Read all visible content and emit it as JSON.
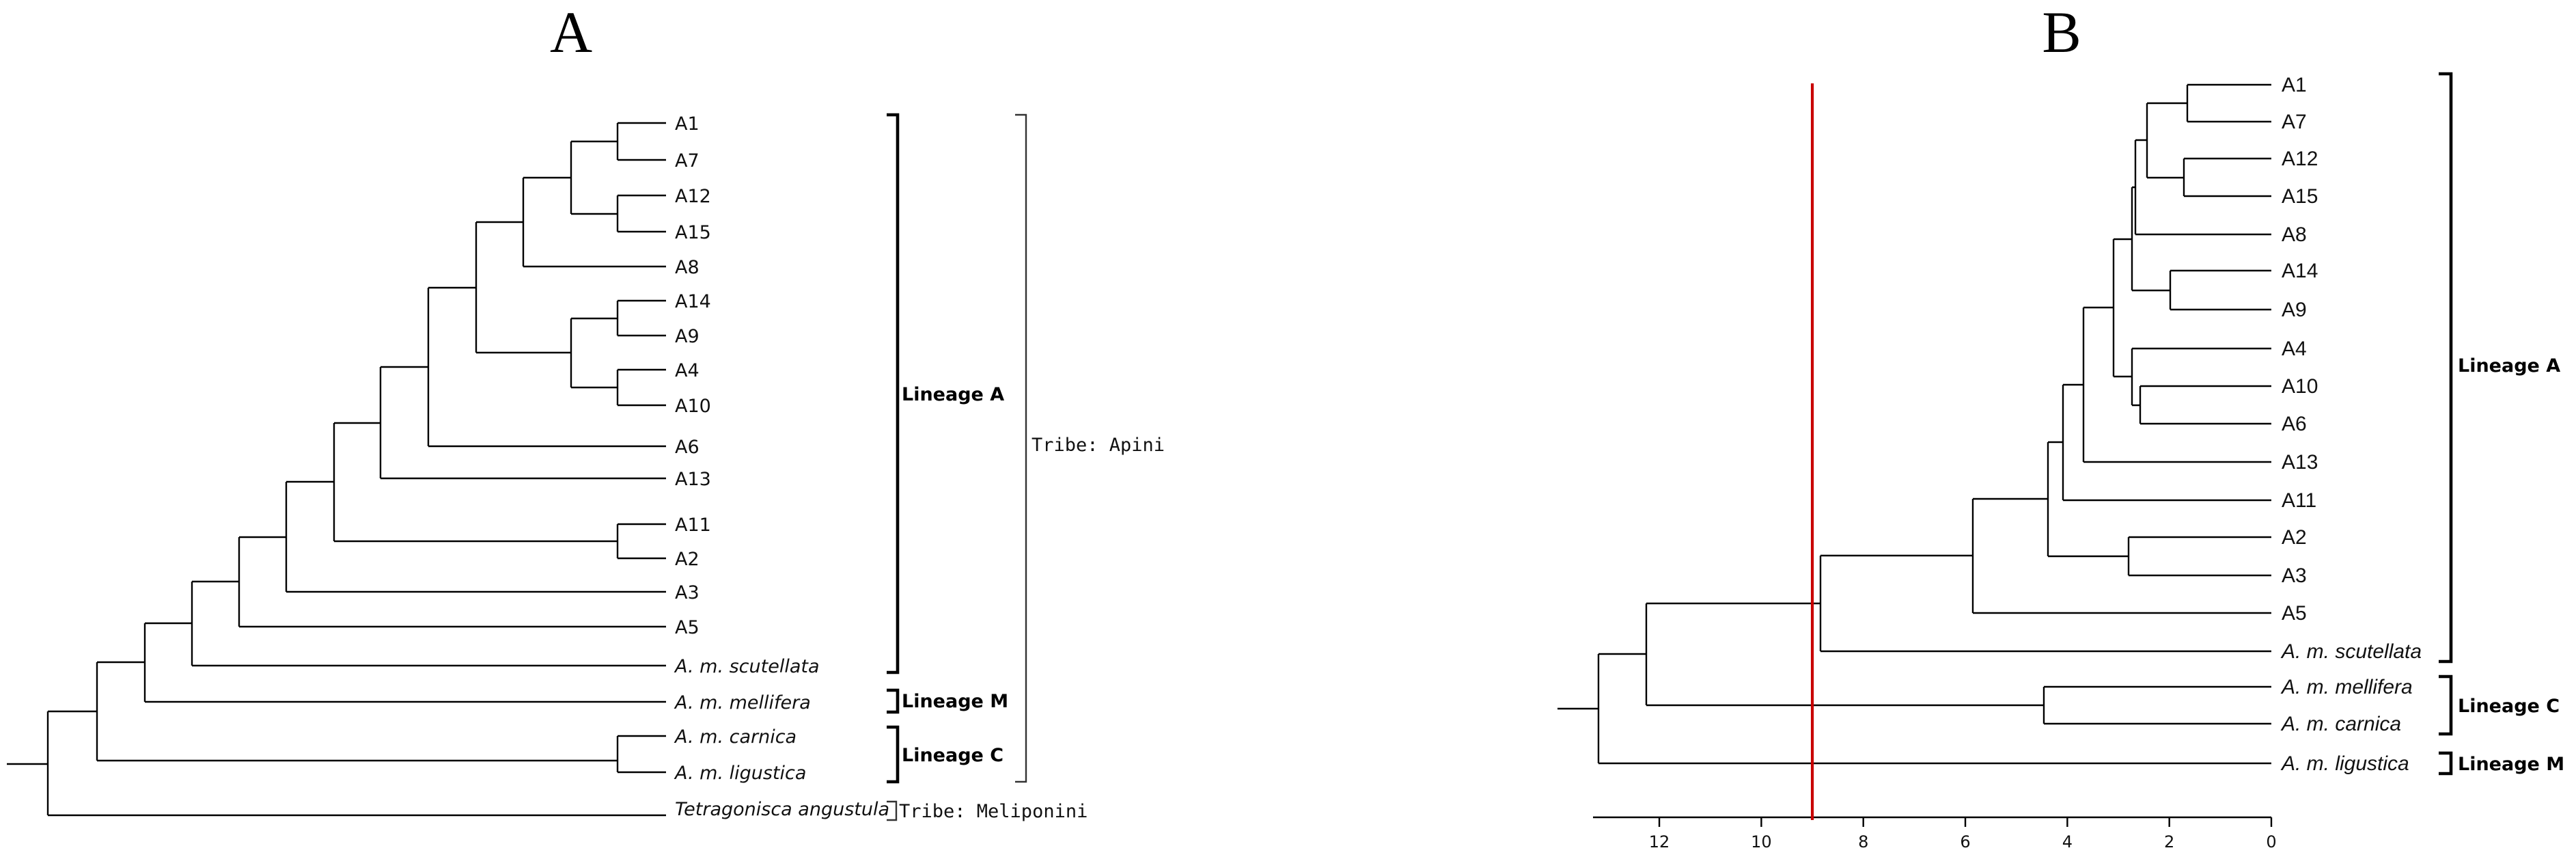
{
  "panel_a": {
    "title": "A",
    "leaves": [
      "A1",
      "A7",
      "A12",
      "A15",
      "A8",
      "A14",
      "A9",
      "A4",
      "A10",
      "A6",
      "A13",
      "A11",
      "A2",
      "A3",
      "A5",
      "A. m. scutellata",
      "A. m. mellifera",
      "A. m. carnica",
      "A. m. ligustica",
      "Tetragonisca angustula"
    ],
    "groups": {
      "lineage_a": "Lineage A",
      "lineage_m": "Lineage M",
      "lineage_c": "Lineage C",
      "tribe_apini": "Tribe: Apini",
      "tribe_meliponini": "Tribe: Meliponini"
    }
  },
  "panel_b": {
    "title": "B",
    "leaves": [
      "A1",
      "A7",
      "A12",
      "A15",
      "A8",
      "A14",
      "A9",
      "A4",
      "A10",
      "A6",
      "A13",
      "A11",
      "A2",
      "A3",
      "A5",
      "A. m. scutellata",
      "A. m. mellifera",
      "A. m. carnica",
      "A. m. ligustica"
    ],
    "groups": {
      "lineage_a": "Lineage A",
      "lineage_c": "Lineage C",
      "lineage_m": "Lineage M"
    },
    "axis": {
      "ticks": [
        12,
        10,
        8,
        6,
        4,
        2,
        0
      ],
      "range": [
        13.3,
        0
      ],
      "reference_line_value": 9
    },
    "colors": {
      "reference_line": "#c80000"
    }
  }
}
